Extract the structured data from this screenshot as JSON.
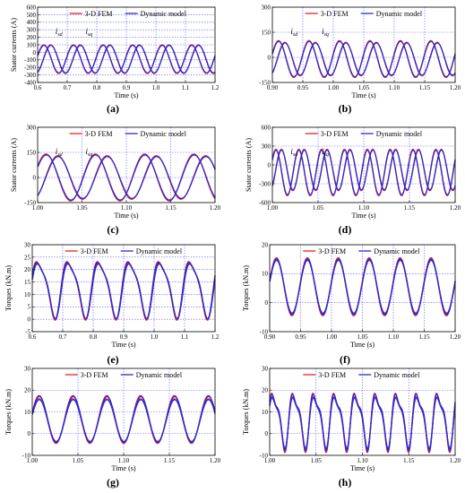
{
  "legend": {
    "fem": "3-D FEM",
    "dyn": "Dynamic model"
  },
  "colors": {
    "fem": "#e8202a",
    "dyn": "#2b2bd0",
    "grid": "#5a5aff"
  },
  "chart_data": [
    {
      "id": "a",
      "type": "line",
      "sublabel": "(a)",
      "ylabel": "Stator currents (A)",
      "xlabel": "Time (s)",
      "xlim": [
        0.6,
        1.2
      ],
      "ylim": [
        -400,
        600
      ],
      "xticks": [
        "0.6",
        "0.7",
        "0.8",
        "0.9",
        "1.0",
        "1.1",
        "1.2"
      ],
      "yticks": [
        "-400",
        "-300",
        "-200",
        "-100",
        "0",
        "100",
        "200",
        "300",
        "400",
        "500",
        "600"
      ],
      "annotations": [
        "isd",
        "isq"
      ],
      "waves": [
        {
          "amp": 190,
          "offset": -90,
          "freq": 10,
          "phase": 0.25
        },
        {
          "amp": 190,
          "offset": -90,
          "freq": 10,
          "phase": -1.2
        }
      ]
    },
    {
      "id": "b",
      "type": "line",
      "sublabel": "(b)",
      "ylabel": "",
      "xlabel": "Time (s)",
      "xlim": [
        0.9,
        1.2
      ],
      "ylim": [
        -150,
        300
      ],
      "xticks": [
        "0.90",
        "0.95",
        "1.00",
        "1.05",
        "1.10",
        "1.15",
        "1.20"
      ],
      "yticks": [
        "-150",
        "0",
        "150",
        "300"
      ],
      "annotations": [
        "isd",
        "isq"
      ],
      "waves": [
        {
          "amp": 110,
          "offset": -10,
          "freq": 20,
          "phase": 0.3
        },
        {
          "amp": 100,
          "offset": -10,
          "freq": 20,
          "phase": -1.0
        }
      ]
    },
    {
      "id": "c",
      "type": "line",
      "sublabel": "(c)",
      "ylabel": "Stator currents (A)",
      "xlabel": "Time (s)",
      "xlim": [
        1.0,
        1.2
      ],
      "ylim": [
        -150,
        300
      ],
      "xticks": [
        "1.00",
        "1.05",
        "1.10",
        "1.15",
        "1.20"
      ],
      "yticks": [
        "-150",
        "0",
        "150",
        "300"
      ],
      "annotations": [
        "isd",
        "isq"
      ],
      "waves": [
        {
          "amp": 140,
          "offset": 0,
          "freq": 18,
          "phase": 0.5
        },
        {
          "amp": 130,
          "offset": 0,
          "freq": 18,
          "phase": -1.0
        }
      ]
    },
    {
      "id": "d",
      "type": "line",
      "sublabel": "(d)",
      "ylabel": "Stator currents (A)",
      "xlabel": "Time (s)",
      "xlim": [
        1.0,
        1.2
      ],
      "ylim": [
        -600,
        600
      ],
      "xticks": [
        "1.00",
        "1.05",
        "1.10",
        "1.15",
        "1.20"
      ],
      "yticks": [
        "-600",
        "-300",
        "0",
        "300",
        "600"
      ],
      "annotations": [
        "isd",
        "isq"
      ],
      "waves": [
        {
          "amp": 370,
          "offset": -120,
          "freq": 40,
          "phase": 0.6
        },
        {
          "amp": 330,
          "offset": -80,
          "freq": 40,
          "phase": -0.9
        }
      ]
    },
    {
      "id": "e",
      "type": "line",
      "sublabel": "(e)",
      "ylabel": "Torques (kN.m)",
      "xlabel": "Time (s)",
      "xlim": [
        0.6,
        1.2
      ],
      "ylim": [
        -5,
        30
      ],
      "xticks": [
        "0.6",
        "0.7",
        "0.8",
        "0.9",
        "1.0",
        "1.1",
        "1.2"
      ],
      "yticks": [
        "-5",
        "0",
        "5",
        "10",
        "15",
        "20",
        "25",
        "30"
      ],
      "annotations": [],
      "waves": [
        {
          "amp": 11,
          "offset": 13,
          "freq": 10,
          "phase": 0.2,
          "harm": 0.25
        },
        {
          "amp": 11,
          "offset": 12.5,
          "freq": 10,
          "phase": 0.15,
          "harm": 0.2
        }
      ]
    },
    {
      "id": "f",
      "type": "line",
      "sublabel": "(f)",
      "ylabel": "Torques (kN.m)",
      "xlabel": "Time (s)",
      "xlim": [
        0.9,
        1.2
      ],
      "ylim": [
        -10,
        20
      ],
      "xticks": [
        "0.90",
        "0.95",
        "1.00",
        "1.05",
        "1.10",
        "1.15",
        "1.20"
      ],
      "yticks": [
        "-10",
        "0",
        "10",
        "20"
      ],
      "annotations": [],
      "waves": [
        {
          "amp": 10,
          "offset": 5.5,
          "freq": 20,
          "phase": 0.2
        },
        {
          "amp": 9.5,
          "offset": 5.5,
          "freq": 20,
          "phase": 0.2
        }
      ]
    },
    {
      "id": "g",
      "type": "line",
      "sublabel": "(g)",
      "ylabel": "Torques (kN.m)",
      "xlabel": "Time (s)",
      "xlim": [
        1.0,
        1.2
      ],
      "ylim": [
        -10,
        30
      ],
      "xticks": [
        "1.00",
        "1.05",
        "1.10",
        "1.15",
        "1.20"
      ],
      "yticks": [
        "-10",
        "0",
        "10",
        "20",
        "30"
      ],
      "annotations": [],
      "waves": [
        {
          "amp": 11,
          "offset": 6.5,
          "freq": 27,
          "phase": 0.3
        },
        {
          "amp": 10,
          "offset": 6,
          "freq": 27,
          "phase": 0.3
        }
      ]
    },
    {
      "id": "h",
      "type": "line",
      "sublabel": "(h)",
      "ylabel": "Torques (kN.m)",
      "xlabel": "Time (s)",
      "xlim": [
        1.0,
        1.2
      ],
      "ylim": [
        -10,
        30
      ],
      "xticks": [
        "1.00",
        "1.05",
        "1.10",
        "1.15",
        "1.20"
      ],
      "yticks": [
        "-10",
        "0",
        "10",
        "20",
        "30"
      ],
      "annotations": [],
      "waves": [
        {
          "amp": 12,
          "offset": 7,
          "freq": 45,
          "phase": 0.3,
          "harm": 0.35
        },
        {
          "amp": 11,
          "offset": 6.5,
          "freq": 45,
          "phase": 0.3,
          "harm": 0.3
        }
      ]
    }
  ]
}
